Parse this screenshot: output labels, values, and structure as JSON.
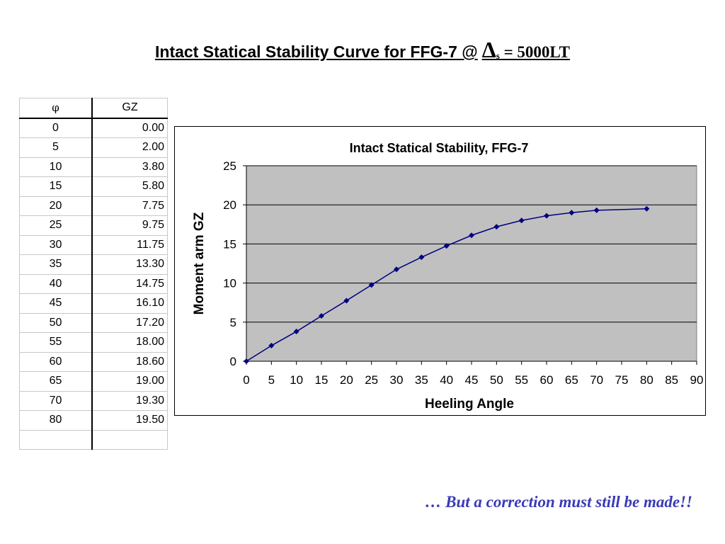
{
  "slide": {
    "title_main": "Intact Statical Stability Curve for FFG-7 @",
    "title_symbol": "Δ",
    "title_subscript": "s",
    "title_tail": " = 5000LT",
    "footer": "… But a correction must still be made!!"
  },
  "table": {
    "headers": [
      "φ",
      "GZ"
    ],
    "rows": [
      [
        "0",
        "0.00"
      ],
      [
        "5",
        "2.00"
      ],
      [
        "10",
        "3.80"
      ],
      [
        "15",
        "5.80"
      ],
      [
        "20",
        "7.75"
      ],
      [
        "25",
        "9.75"
      ],
      [
        "30",
        "11.75"
      ],
      [
        "35",
        "13.30"
      ],
      [
        "40",
        "14.75"
      ],
      [
        "45",
        "16.10"
      ],
      [
        "50",
        "17.20"
      ],
      [
        "55",
        "18.00"
      ],
      [
        "60",
        "18.60"
      ],
      [
        "65",
        "19.00"
      ],
      [
        "70",
        "19.30"
      ],
      [
        "80",
        "19.50"
      ],
      [
        "",
        ""
      ]
    ]
  },
  "chart_data": {
    "type": "line",
    "title": "Intact Statical Stability, FFG-7",
    "xlabel": "Heeling Angle",
    "ylabel": "Moment arm GZ",
    "xlim": [
      0,
      90
    ],
    "ylim": [
      0,
      25
    ],
    "xticks": [
      0,
      5,
      10,
      15,
      20,
      25,
      30,
      35,
      40,
      45,
      50,
      55,
      60,
      65,
      70,
      75,
      80,
      85,
      90
    ],
    "yticks": [
      0,
      5,
      10,
      15,
      20,
      25
    ],
    "grid": "horizontal",
    "plot_background": "#c0c0c0",
    "series_color": "#000080",
    "series": [
      {
        "x": [
          0,
          5,
          10,
          15,
          20,
          25,
          30,
          35,
          40,
          45,
          50,
          55,
          60,
          65,
          70,
          80
        ],
        "values": [
          0.0,
          2.0,
          3.8,
          5.8,
          7.75,
          9.75,
          11.75,
          13.3,
          14.75,
          16.1,
          17.2,
          18.0,
          18.6,
          19.0,
          19.3,
          19.5
        ]
      }
    ]
  }
}
